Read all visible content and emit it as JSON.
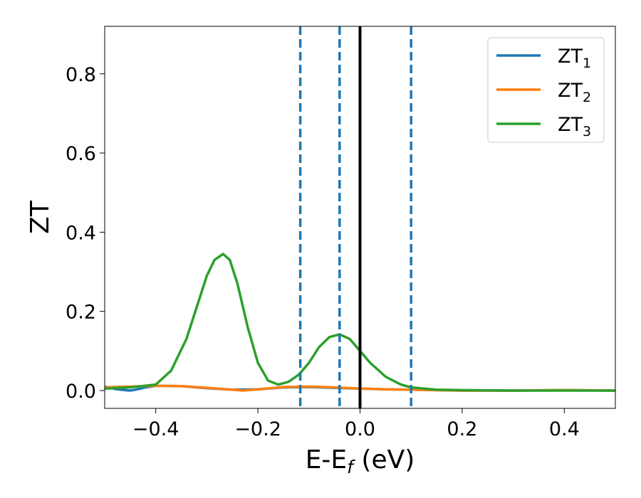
{
  "chart_data": {
    "type": "line",
    "xlabel": {
      "base": "E-E",
      "sub": "f",
      "suffix": " (eV)"
    },
    "ylabel": "ZT",
    "xlim": [
      -0.5,
      0.5
    ],
    "ylim": [
      -0.045,
      0.92
    ],
    "x_ticks": [
      -0.4,
      -0.2,
      0.0,
      0.2,
      0.4
    ],
    "x_tick_labels": [
      "−0.4",
      "−0.2",
      "0.0",
      "0.2",
      "0.4"
    ],
    "y_ticks": [
      0.0,
      0.2,
      0.4,
      0.6,
      0.8
    ],
    "y_tick_labels": [
      "0.0",
      "0.2",
      "0.4",
      "0.6",
      "0.8"
    ],
    "grid": false,
    "legend_position": "top-right",
    "series": [
      {
        "name": "ZT",
        "sub": "1",
        "color": "#1f77b4",
        "x": [
          -0.5,
          -0.48,
          -0.46,
          -0.45,
          -0.44,
          -0.42,
          -0.4,
          -0.35,
          -0.3,
          -0.25,
          -0.2,
          -0.15,
          -0.1,
          -0.05,
          0.0,
          0.05,
          0.1,
          0.15,
          0.2,
          0.3,
          0.4,
          0.5
        ],
        "y": [
          0.01,
          0.004,
          0.001,
          0.0,
          0.002,
          0.008,
          0.012,
          0.011,
          0.006,
          0.002,
          0.003,
          0.008,
          0.009,
          0.007,
          0.005,
          0.003,
          0.002,
          0.001,
          0.0,
          0.0,
          0.001,
          0.0
        ]
      },
      {
        "name": "ZT",
        "sub": "2",
        "color": "#ff7f0e",
        "x": [
          -0.5,
          -0.45,
          -0.42,
          -0.4,
          -0.35,
          -0.3,
          -0.25,
          -0.23,
          -0.2,
          -0.15,
          -0.1,
          -0.05,
          0.0,
          0.05,
          0.1,
          0.15,
          0.2,
          0.3,
          0.4,
          0.5
        ],
        "y": [
          0.008,
          0.01,
          0.011,
          0.012,
          0.011,
          0.007,
          0.002,
          0.0,
          0.003,
          0.009,
          0.01,
          0.008,
          0.005,
          0.003,
          0.002,
          0.001,
          0.0,
          0.0,
          0.001,
          0.0
        ]
      },
      {
        "name": "ZT",
        "sub": "3",
        "color": "#2ca02c",
        "x": [
          -0.5,
          -0.45,
          -0.4,
          -0.37,
          -0.34,
          -0.32,
          -0.3,
          -0.285,
          -0.268,
          -0.255,
          -0.24,
          -0.22,
          -0.2,
          -0.18,
          -0.16,
          -0.14,
          -0.12,
          -0.1,
          -0.08,
          -0.06,
          -0.04,
          -0.02,
          0.0,
          0.02,
          0.05,
          0.08,
          0.1,
          0.15,
          0.2,
          0.3,
          0.4,
          0.5
        ],
        "y": [
          0.005,
          0.008,
          0.015,
          0.05,
          0.13,
          0.21,
          0.29,
          0.33,
          0.345,
          0.33,
          0.27,
          0.16,
          0.07,
          0.025,
          0.015,
          0.022,
          0.04,
          0.07,
          0.11,
          0.135,
          0.142,
          0.13,
          0.1,
          0.07,
          0.035,
          0.015,
          0.008,
          0.002,
          0.001,
          0.0,
          0.0,
          0.0
        ]
      }
    ],
    "reference_lines": [
      {
        "x": -0.117,
        "style": "dashed",
        "color": "#1f77b4"
      },
      {
        "x": -0.04,
        "style": "dashed",
        "color": "#1f77b4"
      },
      {
        "x": 0.0,
        "style": "solid",
        "color": "#000000"
      },
      {
        "x": 0.1,
        "style": "dashed",
        "color": "#1f77b4"
      }
    ]
  }
}
